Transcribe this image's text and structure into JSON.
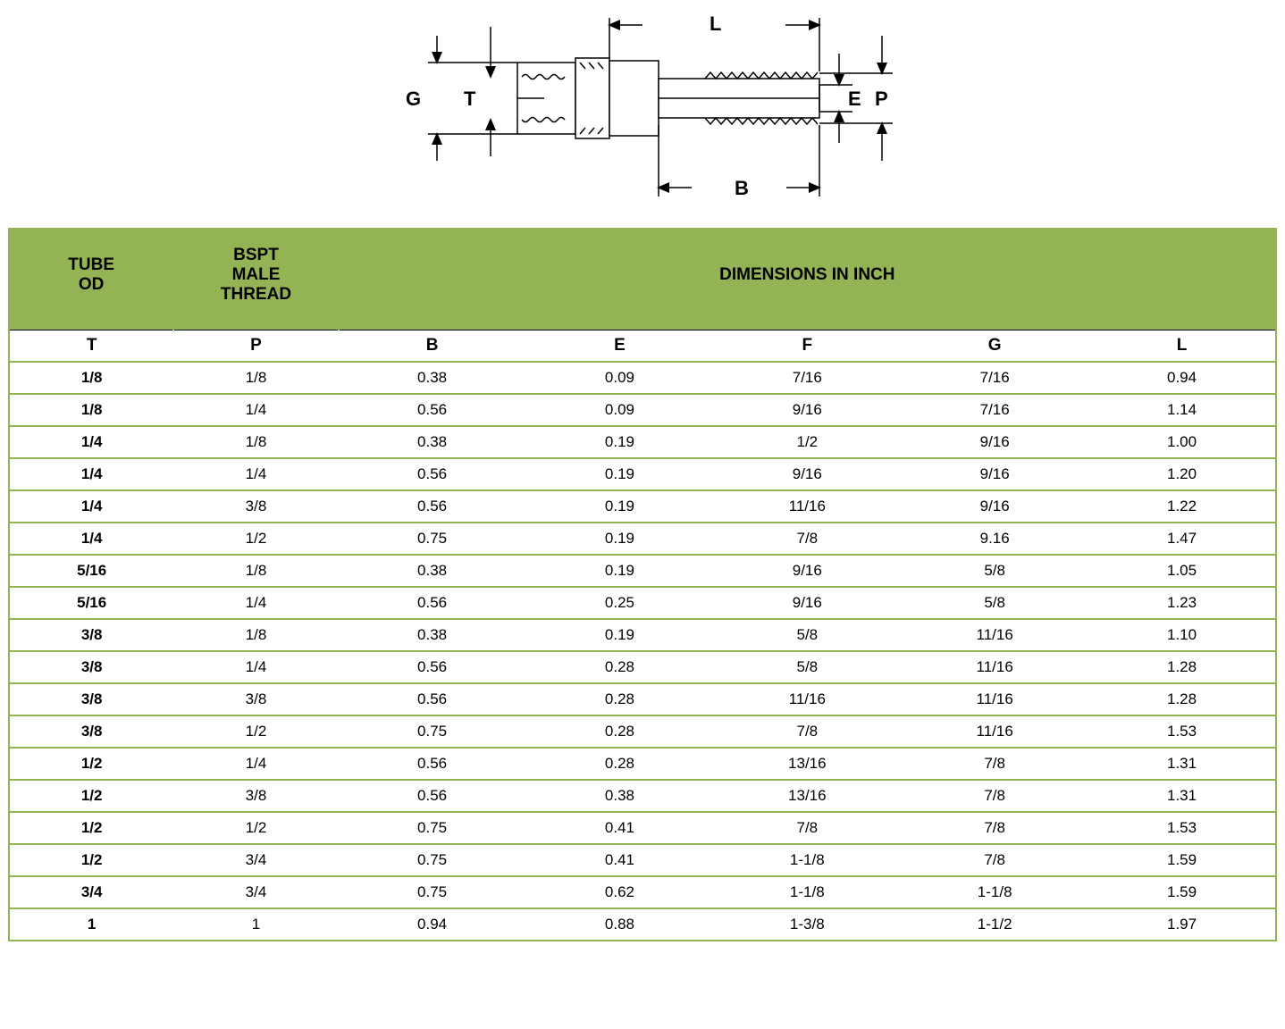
{
  "diagram": {
    "labels": {
      "G": "G",
      "T": "T",
      "L": "L",
      "E": "E",
      "P": "P",
      "B": "B"
    },
    "stroke": "#000000",
    "fill": "#ffffff",
    "text_color": "#000000",
    "font_size": 22,
    "font_weight": "bold"
  },
  "table": {
    "header_bg": "#94b355",
    "border_color": "#94b355",
    "text_color": "#000000",
    "group_headers": {
      "tube_od": "TUBE\nOD",
      "bspt": "BSPT\nMALE\nTHREAD",
      "dims": "DIMENSIONS IN INCH"
    },
    "columns": [
      "T",
      "P",
      "B",
      "E",
      "F",
      "G",
      "L"
    ],
    "rows": [
      [
        "1/8",
        "1/8",
        "0.38",
        "0.09",
        "7/16",
        "7/16",
        "0.94"
      ],
      [
        "1/8",
        "1/4",
        "0.56",
        "0.09",
        "9/16",
        "7/16",
        "1.14"
      ],
      [
        "1/4",
        "1/8",
        "0.38",
        "0.19",
        "1/2",
        "9/16",
        "1.00"
      ],
      [
        "1/4",
        "1/4",
        "0.56",
        "0.19",
        "9/16",
        "9/16",
        "1.20"
      ],
      [
        "1/4",
        "3/8",
        "0.56",
        "0.19",
        "11/16",
        "9/16",
        "1.22"
      ],
      [
        "1/4",
        "1/2",
        "0.75",
        "0.19",
        "7/8",
        "9.16",
        "1.47"
      ],
      [
        "5/16",
        "1/8",
        "0.38",
        "0.19",
        "9/16",
        "5/8",
        "1.05"
      ],
      [
        "5/16",
        "1/4",
        "0.56",
        "0.25",
        "9/16",
        "5/8",
        "1.23"
      ],
      [
        "3/8",
        "1/8",
        "0.38",
        "0.19",
        "5/8",
        "11/16",
        "1.10"
      ],
      [
        "3/8",
        "1/4",
        "0.56",
        "0.28",
        "5/8",
        "11/16",
        "1.28"
      ],
      [
        "3/8",
        "3/8",
        "0.56",
        "0.28",
        "11/16",
        "11/16",
        "1.28"
      ],
      [
        "3/8",
        "1/2",
        "0.75",
        "0.28",
        "7/8",
        "11/16",
        "1.53"
      ],
      [
        "1/2",
        "1/4",
        "0.56",
        "0.28",
        "13/16",
        "7/8",
        "1.31"
      ],
      [
        "1/2",
        "3/8",
        "0.56",
        "0.38",
        "13/16",
        "7/8",
        "1.31"
      ],
      [
        "1/2",
        "1/2",
        "0.75",
        "0.41",
        "7/8",
        "7/8",
        "1.53"
      ],
      [
        "1/2",
        "3/4",
        "0.75",
        "0.41",
        "1-1/8",
        "7/8",
        "1.59"
      ],
      [
        "3/4",
        "3/4",
        "0.75",
        "0.62",
        "1-1/8",
        "1-1/8",
        "1.59"
      ],
      [
        "1",
        "1",
        "0.94",
        "0.88",
        "1-3/8",
        "1-1/2",
        "1.97"
      ]
    ]
  }
}
